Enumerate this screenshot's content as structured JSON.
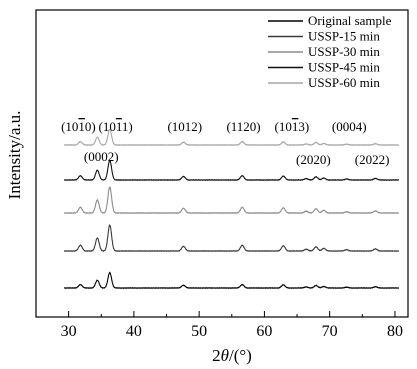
{
  "chart_data": {
    "type": "line",
    "ylabel": "Intensity/a.u.",
    "xlabel_base": "2",
    "xlabel_theta": "θ",
    "xlabel_suffix": "/(°)",
    "xlim": [
      25,
      82
    ],
    "xticks": [
      30,
      40,
      50,
      60,
      70,
      80
    ],
    "legend_position": "top-right",
    "series": [
      {
        "name": "Original sample",
        "color": "#000000",
        "offset": 0,
        "scale": 0.55
      },
      {
        "name": "USSP-15 min",
        "color": "#3a3a3a",
        "offset": 1,
        "scale": 1.0
      },
      {
        "name": "USSP-30 min",
        "color": "#8c8c8c",
        "offset": 2,
        "scale": 1.0
      },
      {
        "name": "USSP-45 min",
        "color": "#111111",
        "offset": 3,
        "scale": 0.75
      },
      {
        "name": "USSP-60 min",
        "color": "#a6a6a6",
        "offset": 4,
        "scale": 0.6
      }
    ],
    "peaks": [
      {
        "x": 31.8,
        "h": 0.22
      },
      {
        "x": 34.4,
        "h": 0.5
      },
      {
        "x": 36.3,
        "h": 1.0
      },
      {
        "x": 47.6,
        "h": 0.18
      },
      {
        "x": 56.6,
        "h": 0.22
      },
      {
        "x": 62.9,
        "h": 0.2
      },
      {
        "x": 66.4,
        "h": 0.07
      },
      {
        "x": 67.9,
        "h": 0.16
      },
      {
        "x": 69.1,
        "h": 0.1
      },
      {
        "x": 72.6,
        "h": 0.05
      },
      {
        "x": 77.0,
        "h": 0.08
      }
    ],
    "annotations": [
      {
        "text": "(10",
        "bar": "1",
        "tail": "0)",
        "x": 31.5,
        "row": "top"
      },
      {
        "text": "(10",
        "bar": "1",
        "tail": "1)",
        "x": 37.2,
        "row": "top"
      },
      {
        "text": "(1012)",
        "bar": "",
        "tail": "",
        "x": 47.8,
        "row": "top"
      },
      {
        "text": "(1120)",
        "bar": "",
        "tail": "",
        "x": 56.8,
        "row": "top"
      },
      {
        "text": "(10",
        "bar": "1",
        "tail": "3)",
        "x": 64.2,
        "row": "top"
      },
      {
        "text": "(0004)",
        "bar": "",
        "tail": "",
        "x": 73.0,
        "row": "top"
      },
      {
        "text": "(0002)",
        "bar": "",
        "tail": "",
        "x": 35.0,
        "row": "mid"
      },
      {
        "text": "(2020)",
        "bar": "",
        "tail": "",
        "x": 67.5,
        "row": "mid2"
      },
      {
        "text": "(2022)",
        "bar": "",
        "tail": "",
        "x": 76.5,
        "row": "mid2"
      }
    ]
  }
}
